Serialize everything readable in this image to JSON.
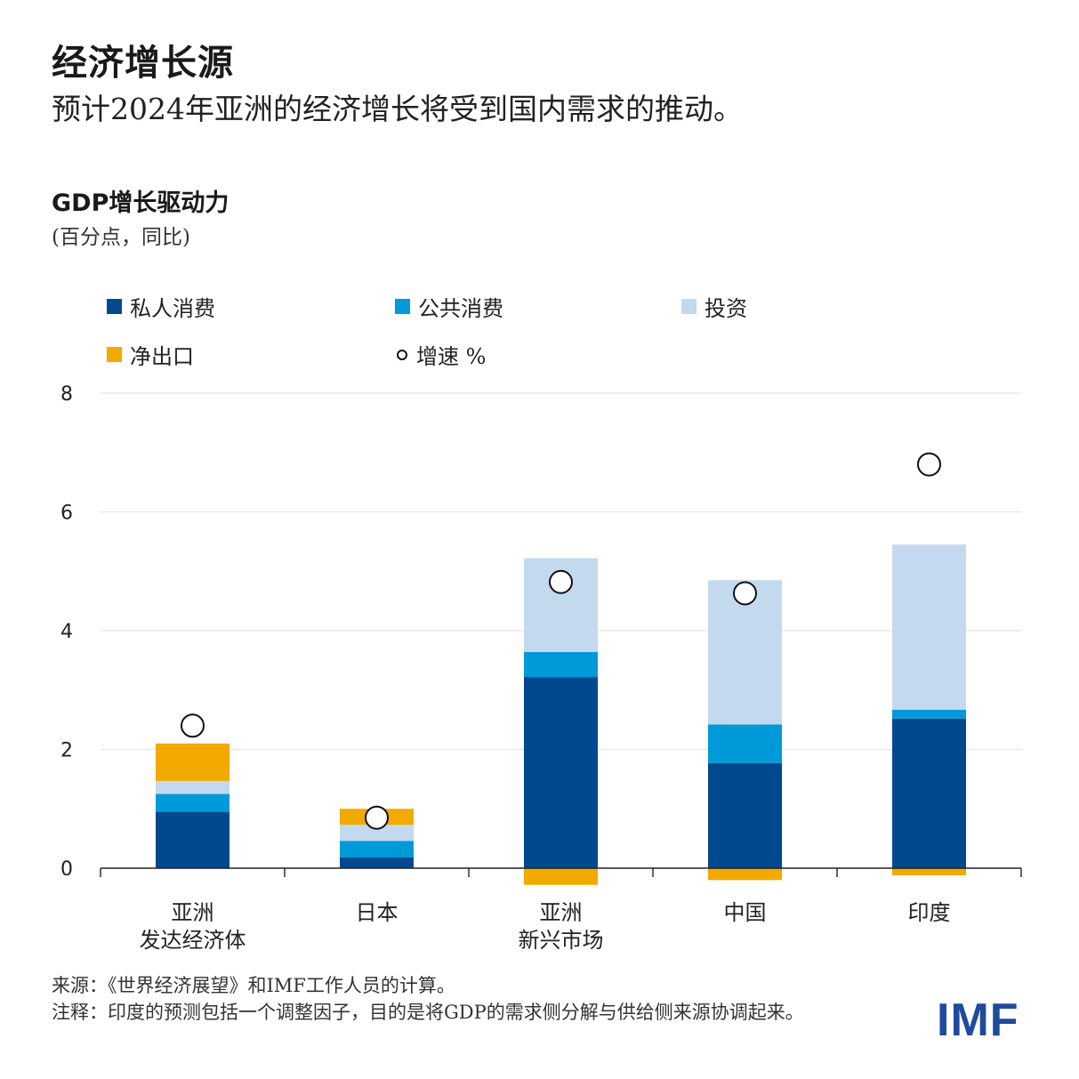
{
  "header": {
    "title": "经济增长源",
    "subtitle": "预计2024年亚洲的经济增长将受到国内需求的推动。"
  },
  "chart_data": {
    "type": "bar",
    "stacked": true,
    "title": "GDP增长驱动力",
    "unit": "(百分点，同比)",
    "ylim": [
      0,
      8
    ],
    "yticks": [
      "0",
      "2",
      "4",
      "6",
      "8"
    ],
    "grid": true,
    "legend_position": "top",
    "categories": [
      [
        "亚洲",
        "发达经济体"
      ],
      [
        "日本"
      ],
      [
        "亚洲",
        "新兴市场"
      ],
      [
        "中国"
      ],
      [
        "印度"
      ]
    ],
    "series": [
      {
        "name": "私人消费",
        "color": "#00498f",
        "values": [
          0.95,
          0.18,
          3.22,
          1.77,
          2.52
        ]
      },
      {
        "name": "公共消费",
        "color": "#009ad9",
        "values": [
          0.3,
          0.28,
          0.42,
          0.65,
          0.15
        ]
      },
      {
        "name": "投资",
        "color": "#c3d9ee",
        "values": [
          0.22,
          0.27,
          1.58,
          2.43,
          2.78
        ]
      },
      {
        "name": "净出口",
        "color": "#f2a900",
        "values": [
          0.63,
          0.27,
          -0.28,
          -0.2,
          -0.12
        ]
      }
    ],
    "growth": {
      "name": "增速 %",
      "values": [
        2.4,
        0.85,
        4.82,
        4.63,
        6.8
      ]
    }
  },
  "footer": {
    "source": "来源：《世界经济展望》和IMF工作人员的计算。",
    "note": "注释：印度的预测包括一个调整因子，目的是将GDP的需求侧分解与供给侧来源协调起来。"
  },
  "logo": {
    "text": "IMF",
    "color": "#1e4b9b"
  }
}
